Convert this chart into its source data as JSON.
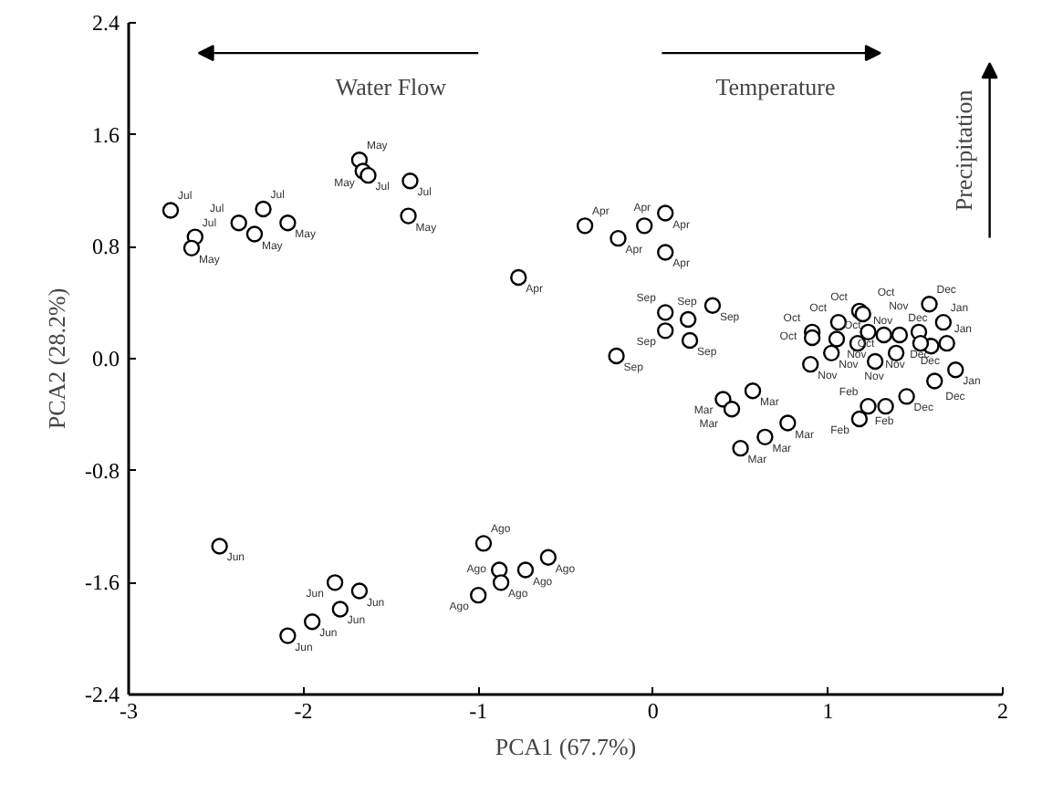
{
  "chart_data": {
    "type": "scatter",
    "xlabel": "PCA1 (67.7%)",
    "ylabel": "PCA2 (28.2%)",
    "xlim": [
      -3,
      2
    ],
    "ylim": [
      -2.4,
      2.4
    ],
    "xticks": [
      -3,
      -2,
      -1,
      0,
      1,
      2
    ],
    "yticks": [
      -2.4,
      -1.6,
      -0.8,
      {
        "value": 0,
        "label": "0.0"
      },
      0.8,
      1.6,
      2.4
    ],
    "grid": false,
    "marker": "circle",
    "annotations": [
      "Water Flow",
      "Temperature",
      "Precipitation"
    ],
    "series": [
      {
        "color": "#000000",
        "x": [
          -2.76,
          -2.62,
          -2.64,
          -2.37,
          -2.23,
          -2.28,
          -2.09,
          -1.68,
          -1.66,
          -1.63,
          -1.39,
          -1.4,
          -0.77,
          -0.39,
          -0.2,
          -0.05,
          0.07,
          0.07,
          0.07,
          0.07,
          0.2,
          0.34,
          0.21,
          -0.21,
          1.66,
          1.68,
          1.73,
          1.58,
          1.52,
          1.59,
          1.61,
          1.45,
          1.53,
          1.23,
          1.33,
          1.18,
          0.9,
          1.02,
          1.27,
          1.39,
          1.17,
          1.41,
          1.32,
          1.18,
          1.2,
          1.06,
          0.91,
          0.91,
          1.05,
          1.23,
          0.4,
          0.45,
          0.57,
          0.77,
          0.64,
          0.5,
          -2.48,
          -1.82,
          -1.68,
          -1.79,
          -1.95,
          -2.09,
          -0.97,
          -0.6,
          -0.88,
          -0.73,
          -0.87,
          -1.0
        ],
        "values": [
          1.06,
          0.87,
          0.79,
          0.97,
          1.07,
          0.89,
          0.97,
          1.42,
          1.34,
          1.31,
          1.27,
          1.02,
          0.58,
          0.95,
          0.86,
          0.95,
          1.04,
          0.76,
          0.33,
          0.2,
          0.28,
          0.38,
          0.13,
          0.02,
          0.26,
          0.11,
          -0.08,
          0.39,
          0.19,
          0.09,
          -0.16,
          -0.27,
          0.11,
          -0.34,
          -0.34,
          -0.43,
          -0.04,
          0.04,
          -0.02,
          0.04,
          0.11,
          0.17,
          0.17,
          0.34,
          0.32,
          0.26,
          0.19,
          0.15,
          0.14,
          0.19,
          -0.29,
          -0.36,
          -0.23,
          -0.46,
          -0.56,
          -0.64,
          -1.34,
          -1.6,
          -1.66,
          -1.79,
          -1.88,
          -1.98,
          -1.32,
          -1.42,
          -1.51,
          -1.51,
          -1.6,
          -1.69
        ],
        "value_labels": [
          "Jul",
          "Jul",
          "May",
          "Jul",
          "Jul",
          "May",
          "May",
          "May",
          "May",
          "Jul",
          "Jul",
          "May",
          "Apr",
          "Apr",
          "Apr",
          "Apr",
          "Apr",
          "Apr",
          "Sep",
          "Sep",
          "Sep",
          "Sep",
          "Sep",
          "Sep",
          "Jan",
          "Jan",
          "Jan",
          "Dec",
          "Dec",
          "Dec",
          "Dec",
          "Dec",
          "Dec",
          "Feb",
          "Feb",
          "Feb",
          "Nov",
          "Nov",
          "Nov",
          "Nov",
          "Nov",
          "Nov",
          "Nov",
          "Oct",
          "Oct",
          "Oct",
          "Oct",
          "Oct",
          "Oct",
          "Oct",
          "Mar",
          "Mar",
          "Mar",
          "Mar",
          "Mar",
          "Mar",
          "Jun",
          "Jun",
          "Jun",
          "Jun",
          "Jun",
          "Jun",
          "Ago",
          "Ago",
          "Ago",
          "Ago",
          "Ago",
          "Ago"
        ]
      }
    ]
  }
}
